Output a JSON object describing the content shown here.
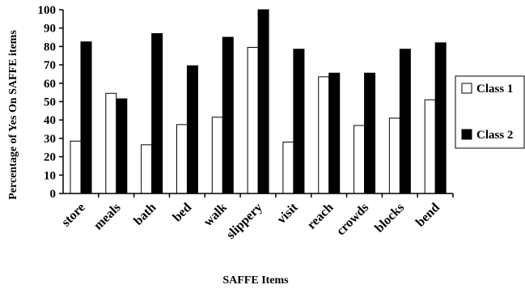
{
  "chart_data": {
    "type": "bar",
    "title": "",
    "xlabel": "SAFFE Items",
    "ylabel": "Percentage of Yes On SAFFE items",
    "ylim": [
      0,
      100
    ],
    "yticks": [
      0,
      10,
      20,
      30,
      40,
      50,
      60,
      70,
      80,
      90,
      100
    ],
    "grid": false,
    "legend_position": "right",
    "categories": [
      "store",
      "meals",
      "bath",
      "bed",
      "walk",
      "slippery",
      "visit",
      "reach",
      "crowds",
      "blocks",
      "bend"
    ],
    "series": [
      {
        "name": "Class 1",
        "color": "#ffffff",
        "values": [
          28.5,
          54.5,
          26.5,
          37.5,
          41.5,
          79.5,
          28,
          63.5,
          37,
          41,
          51
        ]
      },
      {
        "name": "Class 2",
        "color": "#000000",
        "values": [
          82.5,
          51.5,
          87,
          69.5,
          85,
          100,
          78.5,
          65.5,
          65.5,
          78.5,
          82
        ]
      }
    ]
  }
}
